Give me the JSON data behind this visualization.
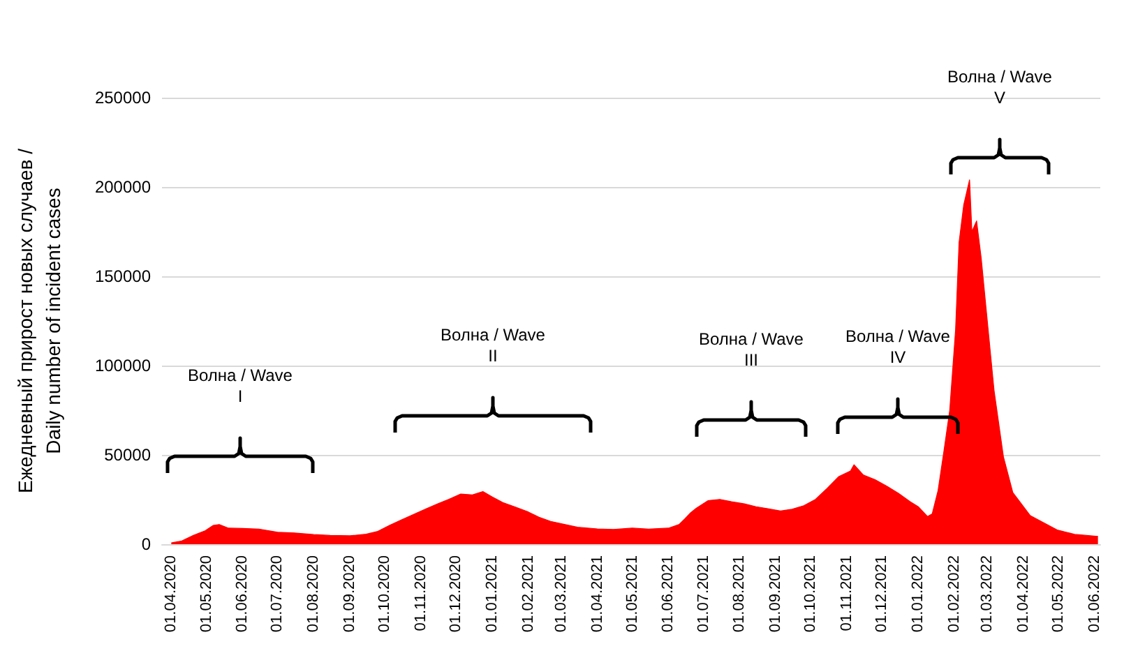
{
  "chart_data": {
    "type": "area",
    "ylabel": "Ежедневный прирост новых случаев /\nDaily number of incident cases",
    "color": "#ff0000",
    "grid": "y",
    "marker": "none",
    "ylim": [
      0,
      250000
    ],
    "yticks": [
      0,
      50000,
      100000,
      150000,
      200000,
      250000
    ],
    "xlim": [
      "2020-03-24",
      "2022-06-06"
    ],
    "xticks": [
      {
        "value": "2020-04-01",
        "label": "01.04.2020"
      },
      {
        "value": "2020-05-01",
        "label": "01.05.2020"
      },
      {
        "value": "2020-06-01",
        "label": "01.06.2020"
      },
      {
        "value": "2020-07-01",
        "label": "01.07.2020"
      },
      {
        "value": "2020-08-01",
        "label": "01.08.2020"
      },
      {
        "value": "2020-09-01",
        "label": "01.09.2020"
      },
      {
        "value": "2020-10-01",
        "label": "01.10.2020"
      },
      {
        "value": "2020-11-01",
        "label": "01.11.2020"
      },
      {
        "value": "2020-12-01",
        "label": "01.12.2020"
      },
      {
        "value": "2021-01-01",
        "label": "01.01.2021"
      },
      {
        "value": "2021-02-01",
        "label": "01.02.2021"
      },
      {
        "value": "2021-03-01",
        "label": "01.03.2021"
      },
      {
        "value": "2021-04-01",
        "label": "01.04.2021"
      },
      {
        "value": "2021-05-01",
        "label": "01.05.2021"
      },
      {
        "value": "2021-06-01",
        "label": "01.06.2021"
      },
      {
        "value": "2021-07-01",
        "label": "01.07.2021"
      },
      {
        "value": "2021-08-01",
        "label": "01.08.2021"
      },
      {
        "value": "2021-09-01",
        "label": "01.09.2021"
      },
      {
        "value": "2021-10-01",
        "label": "01.10.2021"
      },
      {
        "value": "2021-11-01",
        "label": "01.11.2021"
      },
      {
        "value": "2021-12-01",
        "label": "01.12.2021"
      },
      {
        "value": "2022-01-01",
        "label": "01.01.2022"
      },
      {
        "value": "2022-02-01",
        "label": "01.02.2022"
      },
      {
        "value": "2022-03-01",
        "label": "01.03.2022"
      },
      {
        "value": "2022-04-01",
        "label": "01.04.2022"
      },
      {
        "value": "2022-05-01",
        "label": "01.05.2022"
      },
      {
        "value": "2022-06-01",
        "label": "01.06.2022"
      }
    ],
    "x": [
      "2020-04-01",
      "2020-04-10",
      "2020-04-20",
      "2020-04-30",
      "2020-05-07",
      "2020-05-12",
      "2020-05-20",
      "2020-06-01",
      "2020-06-15",
      "2020-07-01",
      "2020-07-15",
      "2020-08-01",
      "2020-08-15",
      "2020-09-01",
      "2020-09-15",
      "2020-09-25",
      "2020-10-05",
      "2020-10-15",
      "2020-10-25",
      "2020-11-05",
      "2020-11-15",
      "2020-11-25",
      "2020-12-05",
      "2020-12-15",
      "2020-12-24",
      "2021-01-01",
      "2021-01-10",
      "2021-01-20",
      "2021-02-01",
      "2021-02-10",
      "2021-02-20",
      "2021-03-01",
      "2021-03-15",
      "2021-04-01",
      "2021-04-15",
      "2021-05-01",
      "2021-05-15",
      "2021-06-01",
      "2021-06-10",
      "2021-06-15",
      "2021-06-20",
      "2021-06-25",
      "2021-07-05",
      "2021-07-15",
      "2021-07-25",
      "2021-08-05",
      "2021-08-15",
      "2021-08-25",
      "2021-09-05",
      "2021-09-15",
      "2021-09-25",
      "2021-10-05",
      "2021-10-15",
      "2021-10-25",
      "2021-11-04",
      "2021-11-07",
      "2021-11-15",
      "2021-11-25",
      "2021-12-05",
      "2021-12-15",
      "2021-12-25",
      "2022-01-01",
      "2022-01-09",
      "2022-01-13",
      "2022-01-18",
      "2022-01-23",
      "2022-01-28",
      "2022-02-02",
      "2022-02-05",
      "2022-02-09",
      "2022-02-14",
      "2022-02-16",
      "2022-02-20",
      "2022-02-24",
      "2022-02-28",
      "2022-03-07",
      "2022-03-15",
      "2022-03-23",
      "2022-04-07",
      "2022-04-30",
      "2022-05-15",
      "2022-06-04"
    ],
    "values": [
      700,
      1800,
      5000,
      7500,
      10500,
      11000,
      9000,
      8800,
      8500,
      6700,
      6300,
      5400,
      4900,
      4700,
      5600,
      7200,
      10500,
      13600,
      16500,
      19700,
      22500,
      25200,
      28100,
      27600,
      29500,
      26500,
      23300,
      21000,
      18000,
      15100,
      12800,
      11500,
      9500,
      8600,
      8300,
      9000,
      8500,
      9000,
      11000,
      14200,
      17600,
      20200,
      24400,
      25100,
      23800,
      22600,
      21000,
      19900,
      18600,
      19600,
      21600,
      25100,
      31300,
      37900,
      41000,
      44500,
      38700,
      36100,
      32500,
      28500,
      23800,
      21000,
      15500,
      17000,
      30000,
      52000,
      75000,
      120000,
      169000,
      190000,
      204000,
      175000,
      181000,
      160000,
      133000,
      86000,
      49000,
      29000,
      16000,
      8000,
      5500,
      4400
    ],
    "annotations": [
      "Волна / Wave\nI",
      "Волна / Wave\nII",
      "Волна / Wave\nIII",
      "Волна / Wave\nIV",
      "Волна / Wave\nV"
    ]
  }
}
